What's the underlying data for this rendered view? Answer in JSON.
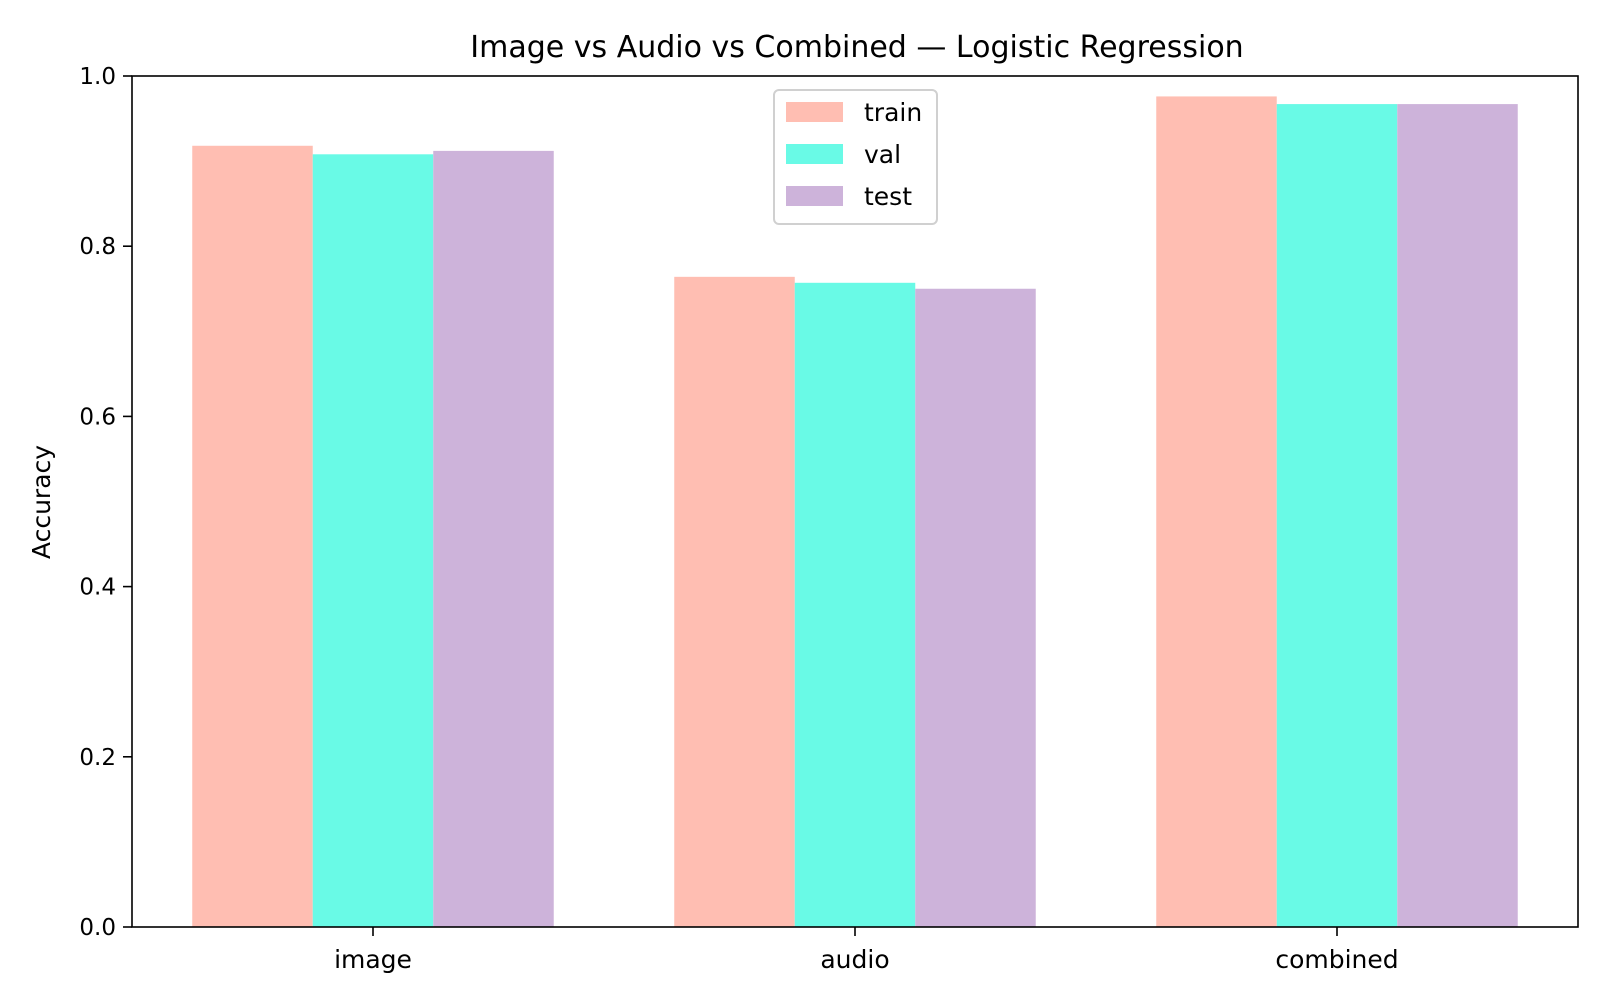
{
  "chart_data": {
    "type": "bar",
    "title": "Image vs Audio vs Combined — Logistic Regression",
    "xlabel": "",
    "ylabel": "Accuracy",
    "ylim": [
      0,
      1.0
    ],
    "yticks": [
      "0.0",
      "0.2",
      "0.4",
      "0.6",
      "0.8",
      "1.0"
    ],
    "categories": [
      "image",
      "audio",
      "combined"
    ],
    "series": [
      {
        "name": "train",
        "values": [
          0.918,
          0.764,
          0.976
        ],
        "color": "#FFBEB2"
      },
      {
        "name": "val",
        "values": [
          0.908,
          0.757,
          0.967
        ],
        "color": "#69FAE6"
      },
      {
        "name": "test",
        "values": [
          0.912,
          0.75,
          0.967
        ],
        "color": "#CDB3DA"
      }
    ],
    "legend_position": "top-center",
    "grid": false
  }
}
